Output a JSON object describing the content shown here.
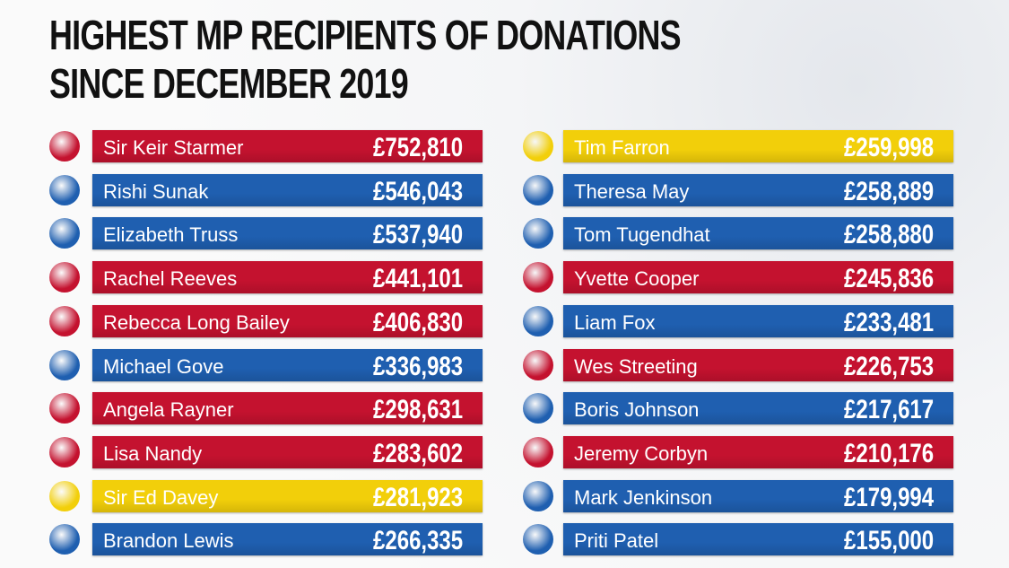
{
  "title": [
    "HIGHEST MP RECIPIENTS OF DONATIONS",
    "SINCE DECEMBER 2019"
  ],
  "columns": [
    {
      "rows": [
        {
          "name": "Sir Keir Starmer",
          "amount": "£752,810",
          "color": "#c4122f"
        },
        {
          "name": "Rishi Sunak",
          "amount": "£546,043",
          "color": "#1f5fb0"
        },
        {
          "name": "Elizabeth Truss",
          "amount": "£537,940",
          "color": "#1f5fb0"
        },
        {
          "name": "Rachel Reeves",
          "amount": "£441,101",
          "color": "#c4122f"
        },
        {
          "name": "Rebecca Long Bailey",
          "amount": "£406,830",
          "color": "#c4122f"
        },
        {
          "name": "Michael Gove",
          "amount": "£336,983",
          "color": "#1f5fb0"
        },
        {
          "name": "Angela Rayner",
          "amount": "£298,631",
          "color": "#c4122f"
        },
        {
          "name": "Lisa Nandy",
          "amount": "£283,602",
          "color": "#c4122f"
        },
        {
          "name": "Sir Ed Davey",
          "amount": "£281,923",
          "color": "#f2cf0a"
        },
        {
          "name": "Brandon Lewis",
          "amount": "£266,335",
          "color": "#1f5fb0"
        }
      ]
    },
    {
      "rows": [
        {
          "name": "Tim Farron",
          "amount": "£259,998",
          "color": "#f2cf0a"
        },
        {
          "name": "Theresa May",
          "amount": "£258,889",
          "color": "#1f5fb0"
        },
        {
          "name": "Tom Tugendhat",
          "amount": "£258,880",
          "color": "#1f5fb0"
        },
        {
          "name": "Yvette Cooper",
          "amount": "£245,836",
          "color": "#c4122f"
        },
        {
          "name": "Liam Fox",
          "amount": "£233,481",
          "color": "#1f5fb0"
        },
        {
          "name": "Wes Streeting",
          "amount": "£226,753",
          "color": "#c4122f"
        },
        {
          "name": "Boris Johnson",
          "amount": "£217,617",
          "color": "#1f5fb0"
        },
        {
          "name": "Jeremy Corbyn",
          "amount": "£210,176",
          "color": "#c4122f"
        },
        {
          "name": "Mark Jenkinson",
          "amount": "£179,994",
          "color": "#1f5fb0"
        },
        {
          "name": "Priti Patel",
          "amount": "£155,000",
          "color": "#1f5fb0"
        }
      ]
    }
  ]
}
